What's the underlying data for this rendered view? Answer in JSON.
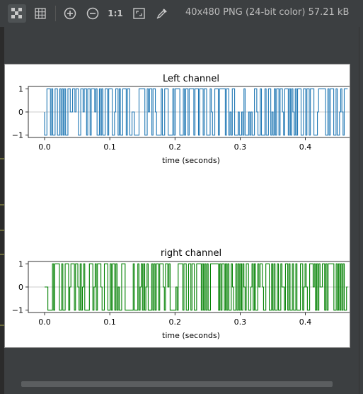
{
  "toolbar": {
    "buttons": [
      {
        "name": "chessboard-icon",
        "active": true
      },
      {
        "name": "grid-icon",
        "active": false
      },
      {
        "name": "zoom-in-icon",
        "active": false
      },
      {
        "name": "zoom-out-icon",
        "active": false
      },
      {
        "name": "actual-size-icon",
        "label": "1:1"
      },
      {
        "name": "fit-to-window-icon",
        "active": false
      },
      {
        "name": "color-picker-icon",
        "active": false
      }
    ],
    "actual_size_label": "1:1",
    "image_info": "40x480 PNG (24-bit color) 57.21 kB"
  },
  "chart_data": [
    {
      "type": "line",
      "title": "Left channel",
      "xlabel": "time (seconds)",
      "ylabel": "",
      "xlim": [
        -0.025,
        0.47
      ],
      "ylim": [
        -1.1,
        1.1
      ],
      "xticks": [
        "0.0",
        "0.1",
        "0.2",
        "0.3",
        "0.4"
      ],
      "xtick_values": [
        0.0,
        0.1,
        0.2,
        0.3,
        0.4
      ],
      "yticks": [
        "1",
        "0",
        "−1"
      ],
      "ytick_values": [
        1,
        0,
        -1
      ],
      "color": "#1f77b4",
      "signal": "rapid switching between -1, 0 and 1 over 0.0–0.465 s",
      "duration": 0.465,
      "seed": 7
    },
    {
      "type": "line",
      "title": "right channel",
      "xlabel": "time (seconds)",
      "ylabel": "",
      "xlim": [
        -0.025,
        0.47
      ],
      "ylim": [
        -1.1,
        1.1
      ],
      "xticks": [
        "0.0",
        "0.1",
        "0.2",
        "0.3",
        "0.4"
      ],
      "xtick_values": [
        0.0,
        0.1,
        0.2,
        0.3,
        0.4
      ],
      "yticks": [
        "1",
        "0",
        "−1"
      ],
      "ytick_values": [
        1,
        0,
        -1
      ],
      "color": "#008000",
      "signal": "flat at 0 until ~0.005 s, then rapid switching between -1, 0 and 1 until 0.465 s",
      "duration": 0.465,
      "seed": 13
    }
  ]
}
